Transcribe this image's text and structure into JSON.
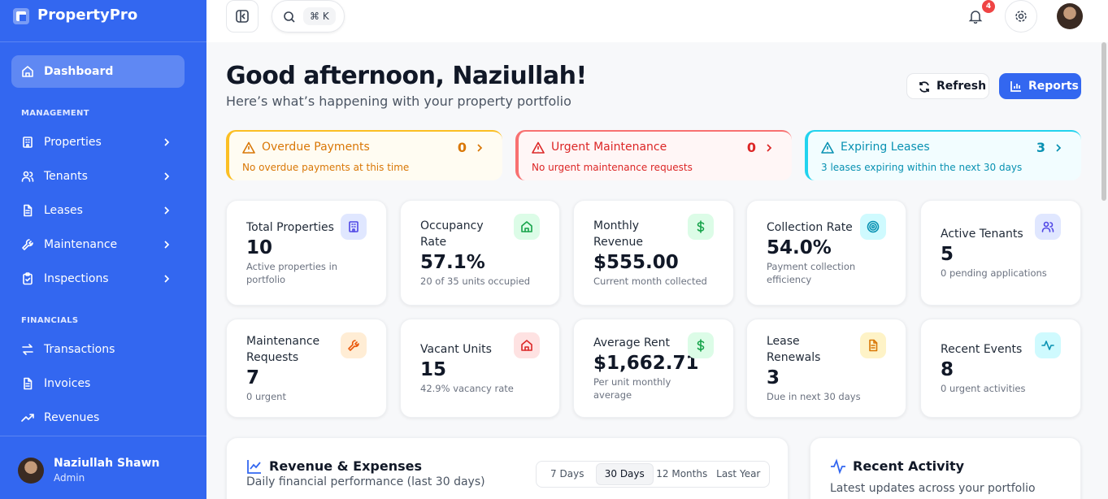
{
  "sidebar": {
    "brand": "PropertyPro",
    "main": [
      "Dashboard"
    ],
    "management": {
      "heading": "MANAGEMENT",
      "items": [
        "Properties",
        "Tenants",
        "Leases",
        "Maintenance",
        "Inspections"
      ]
    },
    "financials": {
      "heading": "FINANCIALS",
      "items": [
        "Transactions",
        "Invoices",
        "Revenues"
      ]
    },
    "user": {
      "name": "Naziullah Shawn",
      "role": "Admin"
    }
  },
  "topbar": {
    "shortcut": "⌘ K",
    "notifications": 4
  },
  "header": {
    "greeting": "Good afternoon, Naziullah!",
    "subtitle": "Here’s what’s happening with your property portfolio",
    "buttons": [
      "Refresh",
      "Reports"
    ]
  },
  "alerts": [
    {
      "title": "Overdue Payments",
      "count": 0,
      "message": "No overdue payments at this time"
    },
    {
      "title": "Urgent Maintenance",
      "count": 0,
      "message": "No urgent maintenance requests"
    },
    {
      "title": "Expiring Leases",
      "count": 3,
      "message": "3 leases expiring within the next 30 days"
    }
  ],
  "stats": [
    {
      "label": "Total Properties",
      "value": "10",
      "note": "Active properties in portfolio"
    },
    {
      "label": "Occupancy Rate",
      "value": "57.1%",
      "note": "20 of 35 units occupied"
    },
    {
      "label": "Monthly Revenue",
      "value": "$555.00",
      "note": "Current month collected"
    },
    {
      "label": "Collection Rate",
      "value": "54.0%",
      "note": "Payment collection efficiency"
    },
    {
      "label": "Active Tenants",
      "value": "5",
      "note": "0 pending applications"
    },
    {
      "label": "Maintenance Requests",
      "value": "7",
      "note": "0 urgent"
    },
    {
      "label": "Vacant Units",
      "value": "15",
      "note": "42.9% vacancy rate"
    },
    {
      "label": "Average Rent",
      "value": "$1,662.71",
      "note": "Per unit monthly average"
    },
    {
      "label": "Lease Renewals",
      "value": "3",
      "note": "Due in next 30 days"
    },
    {
      "label": "Recent Events",
      "value": "8",
      "note": "0 urgent activities"
    }
  ],
  "revenue_panel": {
    "title": "Revenue & Expenses",
    "subtitle": "Daily financial performance (last 30 days)",
    "ranges": [
      "7 Days",
      "30 Days",
      "12 Months",
      "Last Year"
    ]
  },
  "activity_panel": {
    "title": "Recent Activity",
    "subtitle": "Latest updates across your portfolio"
  }
}
